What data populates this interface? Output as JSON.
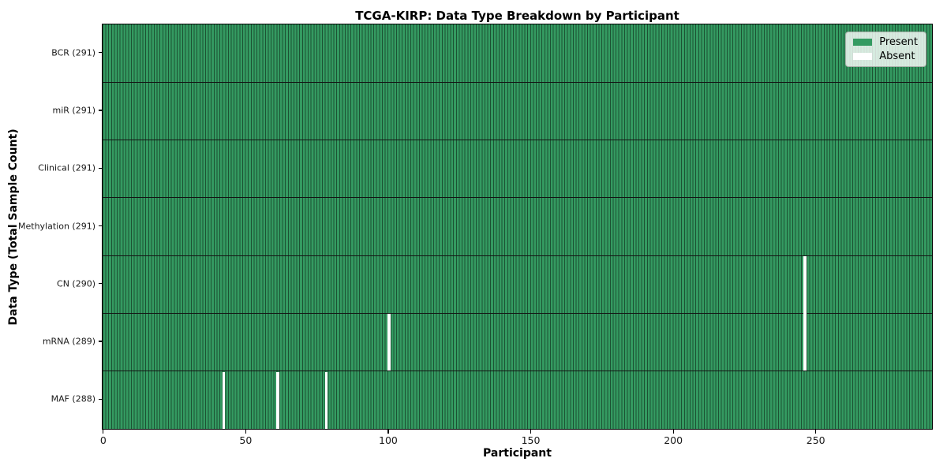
{
  "chart_data": {
    "type": "heatmap",
    "title": "TCGA-KIRP: Data Type Breakdown by Participant",
    "xlabel": "Participant",
    "ylabel": "Data Type (Total Sample Count)",
    "n_participants": 291,
    "x_ticks": [
      0,
      50,
      100,
      150,
      200,
      250
    ],
    "x_range": [
      0,
      290
    ],
    "grid": false,
    "legend_position": "upper right",
    "rows": [
      {
        "label": "BCR (291)",
        "data_type": "BCR",
        "present_count": 291,
        "absent_participants": []
      },
      {
        "label": "miR (291)",
        "data_type": "miR",
        "present_count": 291,
        "absent_participants": []
      },
      {
        "label": "Clinical (291)",
        "data_type": "Clinical",
        "present_count": 291,
        "absent_participants": []
      },
      {
        "label": "Methylation (291)",
        "data_type": "Methylation",
        "present_count": 291,
        "absent_participants": []
      },
      {
        "label": "CN (290)",
        "data_type": "CN",
        "present_count": 290,
        "absent_participants": [
          246
        ]
      },
      {
        "label": "mRNA (289)",
        "data_type": "mRNA",
        "present_count": 289,
        "absent_participants": [
          100,
          246
        ]
      },
      {
        "label": "MAF (288)",
        "data_type": "MAF",
        "present_count": 288,
        "absent_participants": [
          42,
          61,
          78
        ]
      }
    ],
    "legend_items": [
      {
        "label": "Present",
        "color": "#349a61"
      },
      {
        "label": "Absent",
        "color": "#ffffff"
      }
    ],
    "colors": {
      "present_fill": "#349a61",
      "cell_edge": "#1c5233",
      "absent_fill": "#ffffff",
      "row_divider": "#141414",
      "spine": "#000000"
    }
  }
}
